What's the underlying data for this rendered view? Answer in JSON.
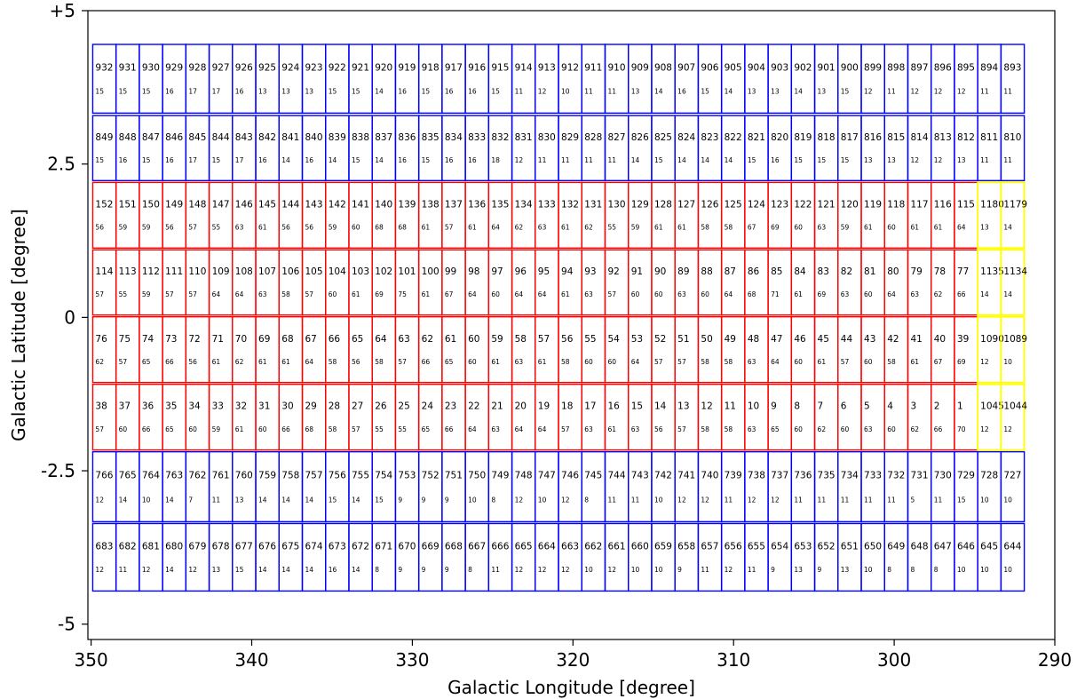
{
  "chart_data": {
    "type": "tile-map",
    "title": "",
    "xlabel": "Galactic Longitude [degree]",
    "ylabel": "Galactic Latitude [degree]",
    "xlim": [
      350.2,
      290
    ],
    "ylim": [
      -5.25,
      5
    ],
    "xticks": [
      {
        "value": 350,
        "label": "350"
      },
      {
        "value": 340,
        "label": "340"
      },
      {
        "value": 330,
        "label": "330"
      },
      {
        "value": 320,
        "label": "320"
      },
      {
        "value": 310,
        "label": "310"
      },
      {
        "value": 300,
        "label": "300"
      },
      {
        "value": 290,
        "label": "290"
      }
    ],
    "yticks": [
      {
        "value": 5,
        "label": "+5"
      },
      {
        "value": 2.5,
        "label": "2.5"
      },
      {
        "value": 0,
        "label": "0"
      },
      {
        "value": -2.5,
        "label": "-2.5"
      },
      {
        "value": -5,
        "label": "-5"
      }
    ],
    "tile_columns": {
      "start_l": 349.9,
      "step_l": 1.45,
      "count": 40
    },
    "rows": [
      {
        "color": "#0000ff",
        "b_top": 4.45,
        "b_bot": 3.33,
        "ids": [
          "932",
          "931",
          "930",
          "929",
          "928",
          "927",
          "926",
          "925",
          "924",
          "923",
          "922",
          "921",
          "920",
          "919",
          "918",
          "917",
          "916",
          "915",
          "914",
          "913",
          "912",
          "911",
          "910",
          "909",
          "908",
          "907",
          "906",
          "905",
          "904",
          "903",
          "902",
          "901",
          "900",
          "899",
          "898",
          "897",
          "896",
          "895",
          "894",
          "893"
        ],
        "counts": [
          "15",
          "15",
          "15",
          "16",
          "17",
          "17",
          "16",
          "13",
          "13",
          "13",
          "15",
          "15",
          "14",
          "16",
          "15",
          "16",
          "16",
          "15",
          "11",
          "12",
          "10",
          "11",
          "11",
          "13",
          "14",
          "16",
          "15",
          "14",
          "13",
          "13",
          "14",
          "13",
          "15",
          "12",
          "11",
          "12",
          "12",
          "12",
          "11",
          "11"
        ]
      },
      {
        "color": "#0000ff",
        "b_top": 3.29,
        "b_bot": 2.23,
        "ids": [
          "849",
          "848",
          "847",
          "846",
          "845",
          "844",
          "843",
          "842",
          "841",
          "840",
          "839",
          "838",
          "837",
          "836",
          "835",
          "834",
          "833",
          "832",
          "831",
          "830",
          "829",
          "828",
          "827",
          "826",
          "825",
          "824",
          "823",
          "822",
          "821",
          "820",
          "819",
          "818",
          "817",
          "816",
          "815",
          "814",
          "813",
          "812",
          "811",
          "810"
        ],
        "counts": [
          "15",
          "16",
          "15",
          "16",
          "17",
          "15",
          "17",
          "16",
          "14",
          "16",
          "14",
          "15",
          "14",
          "16",
          "15",
          "16",
          "16",
          "18",
          "12",
          "11",
          "11",
          "11",
          "11",
          "14",
          "15",
          "14",
          "14",
          "14",
          "15",
          "16",
          "15",
          "15",
          "15",
          "13",
          "13",
          "12",
          "12",
          "13",
          "11",
          "11"
        ]
      },
      {
        "color": "#ff0000",
        "b_top": 2.2,
        "b_bot": 1.13,
        "ids": [
          "152",
          "151",
          "150",
          "149",
          "148",
          "147",
          "146",
          "145",
          "144",
          "143",
          "142",
          "141",
          "140",
          "139",
          "138",
          "137",
          "136",
          "135",
          "134",
          "133",
          "132",
          "131",
          "130",
          "129",
          "128",
          "127",
          "126",
          "125",
          "124",
          "123",
          "122",
          "121",
          "120",
          "119",
          "118",
          "117",
          "116",
          "115",
          "1180",
          "1179"
        ],
        "counts": [
          "56",
          "59",
          "59",
          "56",
          "57",
          "55",
          "63",
          "61",
          "56",
          "56",
          "59",
          "60",
          "68",
          "68",
          "61",
          "57",
          "61",
          "64",
          "62",
          "63",
          "61",
          "62",
          "55",
          "59",
          "61",
          "61",
          "58",
          "58",
          "67",
          "69",
          "60",
          "63",
          "59",
          "61",
          "60",
          "61",
          "61",
          "64",
          "13",
          "14"
        ]
      },
      {
        "color": "#ff0000",
        "b_top": 1.1,
        "b_bot": 0.04,
        "ids": [
          "114",
          "113",
          "112",
          "111",
          "110",
          "109",
          "108",
          "107",
          "106",
          "105",
          "104",
          "103",
          "102",
          "101",
          "100",
          "99",
          "98",
          "97",
          "96",
          "95",
          "94",
          "93",
          "92",
          "91",
          "90",
          "89",
          "88",
          "87",
          "86",
          "85",
          "84",
          "83",
          "82",
          "81",
          "80",
          "79",
          "78",
          "77",
          "1135",
          "1134"
        ],
        "counts": [
          "57",
          "55",
          "59",
          "57",
          "57",
          "64",
          "64",
          "63",
          "58",
          "57",
          "60",
          "61",
          "69",
          "75",
          "61",
          "67",
          "64",
          "60",
          "64",
          "64",
          "61",
          "63",
          "57",
          "60",
          "60",
          "63",
          "60",
          "64",
          "68",
          "71",
          "61",
          "69",
          "63",
          "60",
          "64",
          "63",
          "62",
          "66",
          "14",
          "14"
        ]
      },
      {
        "color": "#ff0000",
        "b_top": 0.01,
        "b_bot": -1.06,
        "ids": [
          "76",
          "75",
          "74",
          "73",
          "72",
          "71",
          "70",
          "69",
          "68",
          "67",
          "66",
          "65",
          "64",
          "63",
          "62",
          "61",
          "60",
          "59",
          "58",
          "57",
          "56",
          "55",
          "54",
          "53",
          "52",
          "51",
          "50",
          "49",
          "48",
          "47",
          "46",
          "45",
          "44",
          "43",
          "42",
          "41",
          "40",
          "39",
          "1090",
          "1089"
        ],
        "counts": [
          "62",
          "57",
          "65",
          "66",
          "56",
          "61",
          "62",
          "61",
          "61",
          "64",
          "58",
          "56",
          "58",
          "57",
          "66",
          "65",
          "60",
          "61",
          "63",
          "61",
          "58",
          "60",
          "60",
          "64",
          "57",
          "57",
          "58",
          "58",
          "63",
          "64",
          "60",
          "61",
          "57",
          "60",
          "58",
          "61",
          "67",
          "69",
          "12",
          "10"
        ]
      },
      {
        "color": "#ff0000",
        "b_top": -1.09,
        "b_bot": -2.16,
        "ids": [
          "38",
          "37",
          "36",
          "35",
          "34",
          "33",
          "32",
          "31",
          "30",
          "29",
          "28",
          "27",
          "26",
          "25",
          "24",
          "23",
          "22",
          "21",
          "20",
          "19",
          "18",
          "17",
          "16",
          "15",
          "14",
          "13",
          "12",
          "11",
          "10",
          "9",
          "8",
          "7",
          "6",
          "5",
          "4",
          "3",
          "2",
          "1",
          "1045",
          "1044"
        ],
        "counts": [
          "57",
          "60",
          "66",
          "65",
          "60",
          "59",
          "61",
          "60",
          "66",
          "68",
          "58",
          "57",
          "55",
          "55",
          "65",
          "66",
          "64",
          "63",
          "64",
          "64",
          "57",
          "63",
          "61",
          "63",
          "56",
          "57",
          "58",
          "58",
          "63",
          "65",
          "60",
          "62",
          "60",
          "63",
          "60",
          "62",
          "66",
          "70",
          "12",
          "12"
        ]
      },
      {
        "color": "#0000ff",
        "b_top": -2.19,
        "b_bot": -3.33,
        "ids": [
          "766",
          "765",
          "764",
          "763",
          "762",
          "761",
          "760",
          "759",
          "758",
          "757",
          "756",
          "755",
          "754",
          "753",
          "752",
          "751",
          "750",
          "749",
          "748",
          "747",
          "746",
          "745",
          "744",
          "743",
          "742",
          "741",
          "740",
          "739",
          "738",
          "737",
          "736",
          "735",
          "734",
          "733",
          "732",
          "731",
          "730",
          "729",
          "728",
          "727"
        ],
        "counts": [
          "12",
          "14",
          "10",
          "14",
          "7",
          "11",
          "13",
          "14",
          "14",
          "14",
          "15",
          "14",
          "15",
          "9",
          "9",
          "9",
          "10",
          "8",
          "12",
          "10",
          "12",
          "8",
          "11",
          "11",
          "10",
          "12",
          "12",
          "11",
          "12",
          "12",
          "11",
          "11",
          "11",
          "11",
          "11",
          "5",
          "11",
          "15",
          "10",
          "10"
        ]
      },
      {
        "color": "#0000ff",
        "b_top": -3.36,
        "b_bot": -4.46,
        "ids": [
          "683",
          "682",
          "681",
          "680",
          "679",
          "678",
          "677",
          "676",
          "675",
          "674",
          "673",
          "672",
          "671",
          "670",
          "669",
          "668",
          "667",
          "666",
          "665",
          "664",
          "663",
          "662",
          "661",
          "660",
          "659",
          "658",
          "657",
          "656",
          "655",
          "654",
          "653",
          "652",
          "651",
          "650",
          "649",
          "648",
          "647",
          "646",
          "645",
          "644"
        ],
        "counts": [
          "12",
          "11",
          "12",
          "14",
          "12",
          "13",
          "15",
          "14",
          "14",
          "14",
          "16",
          "14",
          "8",
          "9",
          "9",
          "9",
          "8",
          "11",
          "12",
          "12",
          "12",
          "10",
          "12",
          "10",
          "10",
          "9",
          "11",
          "12",
          "11",
          "9",
          "13",
          "9",
          "13",
          "10",
          "8",
          "8",
          "8",
          "10",
          "10",
          "10"
        ]
      }
    ],
    "highlight_color": "#ffff00",
    "highlight_rows": [
      2,
      3,
      4,
      5
    ],
    "highlight_cols": [
      38,
      39
    ]
  }
}
